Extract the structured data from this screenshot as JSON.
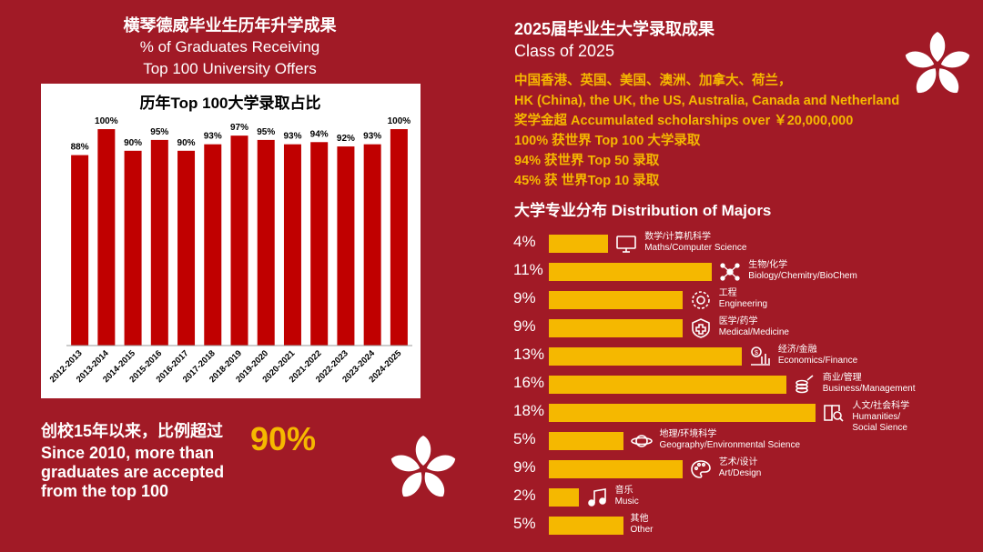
{
  "left": {
    "title_cn": "横琴德威毕业生历年升学成果",
    "title_en_1": "% of Graduates Receiving",
    "title_en_2": "Top 100 University Offers",
    "since_cn": "创校15年以来，比例超过",
    "big_pct": "90%",
    "since_en_1": "Since 2010, more than",
    "since_en_2": "graduates are accepted",
    "since_en_3": "from the top 100"
  },
  "right": {
    "title_cn": "2025届毕业生大学录取成果",
    "title_en": "Class of 2025",
    "achievements": [
      "中国香港、英国、美国、澳洲、加拿大、荷兰，",
      "HK (China), the UK, the US, Australia, Canada and Netherland",
      "奖学金超 Accumulated scholarships over ￥20,000,000",
      "100% 获世界 Top 100 大学录取",
      "94% 获世界 Top 50 录取",
      "45% 获 世界Top 10 录取"
    ],
    "majors_title": "大学专业分布 Distribution of Majors"
  },
  "colors": {
    "bg": "#a11a26",
    "bar_red": "#c00000",
    "accent": "#f5b800"
  },
  "chart_data": [
    {
      "type": "bar",
      "title": "历年Top 100大学录取占比",
      "categories": [
        "2012-2013",
        "2013-2014",
        "2014-2015",
        "2015-2016",
        "2016-2017",
        "2017-2018",
        "2018-2019",
        "2019-2020",
        "2020-2021",
        "2021-2022",
        "2022-2023",
        "2023-2024",
        "2024-2025"
      ],
      "values": [
        88,
        100,
        90,
        95,
        90,
        93,
        97,
        95,
        93,
        94,
        92,
        93,
        100
      ],
      "value_labels": [
        "88%",
        "100%",
        "90%",
        "95%",
        "90%",
        "93%",
        "97%",
        "95%",
        "93%",
        "94%",
        "92%",
        "93%",
        "100%"
      ],
      "ylim": [
        0,
        100
      ]
    },
    {
      "type": "bar",
      "title": "大学专业分布 Distribution of Majors",
      "orientation": "horizontal",
      "categories": [
        {
          "cn": "数学/计算机科学",
          "en": "Maths/Computer Science",
          "icon": "monitor-icon"
        },
        {
          "cn": "生物/化学",
          "en": "Biology/Chemitry/BioChem",
          "icon": "molecule-icon"
        },
        {
          "cn": "工程",
          "en": "Engineering",
          "icon": "gear-icon"
        },
        {
          "cn": "医学/药学",
          "en": "Medical/Medicine",
          "icon": "medical-cross-icon"
        },
        {
          "cn": "经济/金融",
          "en": "Economics/Finance",
          "icon": "finance-icon"
        },
        {
          "cn": "商业/管理",
          "en": "Business/Management",
          "icon": "coins-icon"
        },
        {
          "cn": "人文/社会科学",
          "en": "Humanities/ Social Sience",
          "icon": "book-search-icon"
        },
        {
          "cn": "地理/环境科学",
          "en": "Geography/Environmental Science",
          "icon": "planet-icon"
        },
        {
          "cn": "艺术/设计",
          "en": "Art/Design",
          "icon": "palette-icon"
        },
        {
          "cn": "音乐",
          "en": "Music",
          "icon": "music-icon"
        },
        {
          "cn": "其他",
          "en": "Other",
          "icon": ""
        }
      ],
      "values": [
        4,
        11,
        9,
        9,
        13,
        16,
        18,
        5,
        9,
        2,
        5
      ],
      "value_labels": [
        "4%",
        "11%",
        "9%",
        "9%",
        "13%",
        "16%",
        "18%",
        "5%",
        "9%",
        "2%",
        "5%"
      ]
    }
  ]
}
